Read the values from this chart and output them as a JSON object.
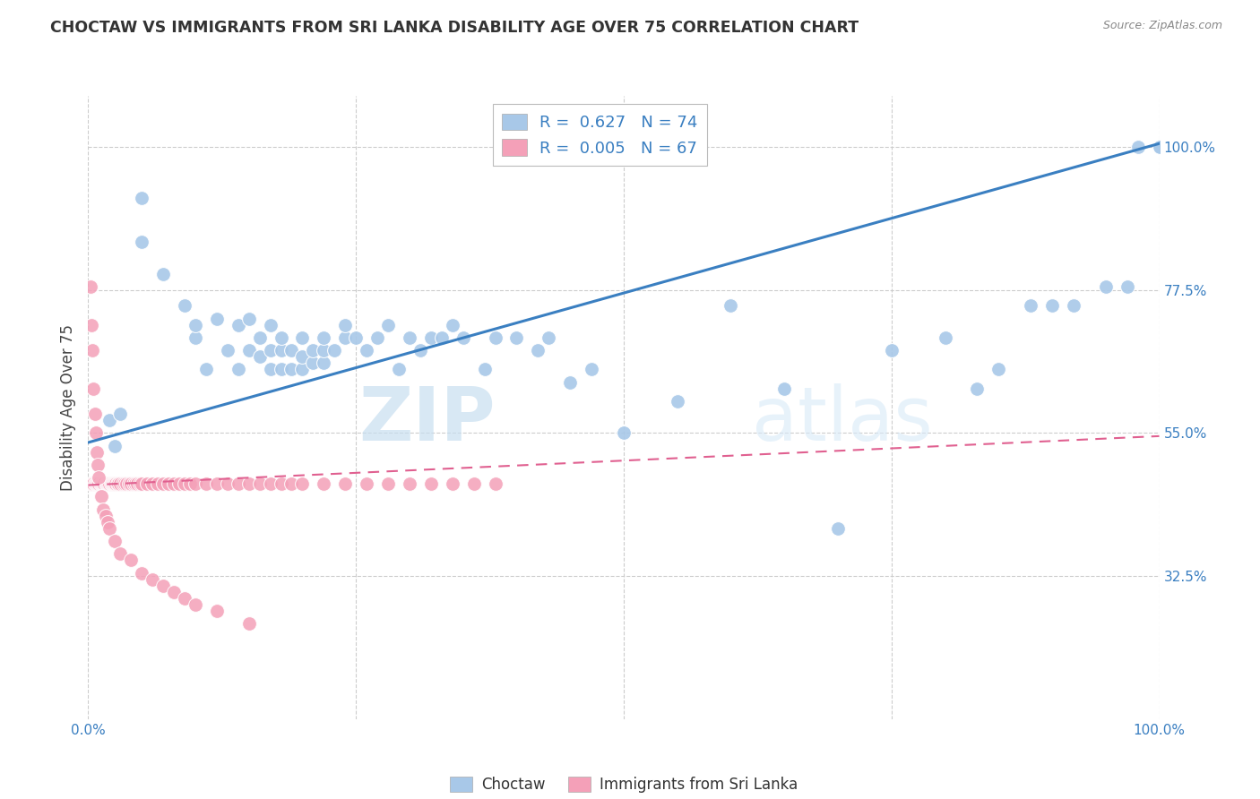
{
  "title": "CHOCTAW VS IMMIGRANTS FROM SRI LANKA DISABILITY AGE OVER 75 CORRELATION CHART",
  "source": "Source: ZipAtlas.com",
  "ylabel": "Disability Age Over 75",
  "ytick_labels": [
    "100.0%",
    "77.5%",
    "55.0%",
    "32.5%"
  ],
  "ytick_values": [
    1.0,
    0.775,
    0.55,
    0.325
  ],
  "xlim": [
    0.0,
    1.0
  ],
  "ylim": [
    0.1,
    1.08
  ],
  "legend_label1": "Choctaw",
  "legend_label2": "Immigrants from Sri Lanka",
  "R1": 0.627,
  "N1": 74,
  "R2": 0.005,
  "N2": 67,
  "color_blue": "#a8c8e8",
  "color_pink": "#f4a0b8",
  "color_line_blue": "#3a7fc1",
  "color_line_pink": "#e06090",
  "watermark_zip": "ZIP",
  "watermark_atlas": "atlas",
  "blue_scatter_x": [
    0.02,
    0.025,
    0.03,
    0.05,
    0.05,
    0.07,
    0.09,
    0.1,
    0.1,
    0.11,
    0.12,
    0.13,
    0.14,
    0.14,
    0.15,
    0.15,
    0.16,
    0.16,
    0.17,
    0.17,
    0.17,
    0.18,
    0.18,
    0.18,
    0.19,
    0.19,
    0.2,
    0.2,
    0.2,
    0.21,
    0.21,
    0.22,
    0.22,
    0.22,
    0.23,
    0.24,
    0.24,
    0.25,
    0.26,
    0.27,
    0.28,
    0.29,
    0.3,
    0.31,
    0.32,
    0.33,
    0.34,
    0.35,
    0.37,
    0.38,
    0.4,
    0.42,
    0.43,
    0.45,
    0.47,
    0.5,
    0.55,
    0.6,
    0.65,
    0.7,
    0.75,
    0.8,
    0.83,
    0.85,
    0.88,
    0.9,
    0.92,
    0.95,
    0.97,
    0.98,
    1.0,
    1.0,
    1.0,
    1.0
  ],
  "blue_scatter_y": [
    0.57,
    0.53,
    0.58,
    0.85,
    0.92,
    0.8,
    0.75,
    0.7,
    0.72,
    0.65,
    0.73,
    0.68,
    0.65,
    0.72,
    0.68,
    0.73,
    0.67,
    0.7,
    0.65,
    0.68,
    0.72,
    0.65,
    0.68,
    0.7,
    0.65,
    0.68,
    0.65,
    0.67,
    0.7,
    0.66,
    0.68,
    0.66,
    0.68,
    0.7,
    0.68,
    0.7,
    0.72,
    0.7,
    0.68,
    0.7,
    0.72,
    0.65,
    0.7,
    0.68,
    0.7,
    0.7,
    0.72,
    0.7,
    0.65,
    0.7,
    0.7,
    0.68,
    0.7,
    0.63,
    0.65,
    0.55,
    0.6,
    0.75,
    0.62,
    0.4,
    0.68,
    0.7,
    0.62,
    0.65,
    0.75,
    0.75,
    0.75,
    0.78,
    0.78,
    1.0,
    1.0,
    1.0,
    1.0,
    1.0
  ],
  "pink_scatter_x": [
    0.002,
    0.003,
    0.004,
    0.005,
    0.006,
    0.007,
    0.008,
    0.009,
    0.01,
    0.011,
    0.012,
    0.013,
    0.014,
    0.015,
    0.016,
    0.017,
    0.018,
    0.019,
    0.02,
    0.021,
    0.022,
    0.023,
    0.024,
    0.025,
    0.026,
    0.027,
    0.028,
    0.03,
    0.032,
    0.034,
    0.036,
    0.038,
    0.04,
    0.042,
    0.044,
    0.046,
    0.048,
    0.05,
    0.055,
    0.06,
    0.065,
    0.07,
    0.075,
    0.08,
    0.085,
    0.09,
    0.095,
    0.1,
    0.11,
    0.12,
    0.13,
    0.14,
    0.15,
    0.16,
    0.17,
    0.18,
    0.19,
    0.2,
    0.22,
    0.24,
    0.26,
    0.28,
    0.3,
    0.32,
    0.34,
    0.36,
    0.38
  ],
  "pink_scatter_y": [
    0.47,
    0.47,
    0.47,
    0.47,
    0.47,
    0.47,
    0.47,
    0.47,
    0.47,
    0.47,
    0.47,
    0.47,
    0.47,
    0.47,
    0.47,
    0.47,
    0.47,
    0.47,
    0.47,
    0.47,
    0.47,
    0.47,
    0.47,
    0.47,
    0.47,
    0.47,
    0.47,
    0.47,
    0.47,
    0.47,
    0.47,
    0.47,
    0.47,
    0.47,
    0.47,
    0.47,
    0.47,
    0.47,
    0.47,
    0.47,
    0.47,
    0.47,
    0.47,
    0.47,
    0.47,
    0.47,
    0.47,
    0.47,
    0.47,
    0.47,
    0.47,
    0.47,
    0.47,
    0.47,
    0.47,
    0.47,
    0.47,
    0.47,
    0.47,
    0.47,
    0.47,
    0.47,
    0.47,
    0.47,
    0.47,
    0.47,
    0.47
  ],
  "pink_extra_x": [
    0.002,
    0.003,
    0.004,
    0.005,
    0.006,
    0.007,
    0.008,
    0.009,
    0.01,
    0.012,
    0.014,
    0.016,
    0.018,
    0.02,
    0.025,
    0.03,
    0.04,
    0.05,
    0.06,
    0.07,
    0.08,
    0.09,
    0.1,
    0.12,
    0.15
  ],
  "pink_extra_y": [
    0.78,
    0.72,
    0.68,
    0.62,
    0.58,
    0.55,
    0.52,
    0.5,
    0.48,
    0.45,
    0.43,
    0.42,
    0.41,
    0.4,
    0.38,
    0.36,
    0.35,
    0.33,
    0.32,
    0.31,
    0.3,
    0.29,
    0.28,
    0.27,
    0.25
  ],
  "blue_line_x": [
    0.0,
    1.0
  ],
  "blue_line_y": [
    0.535,
    1.005
  ],
  "pink_line_x": [
    0.0,
    1.0
  ],
  "pink_line_y": [
    0.468,
    0.545
  ]
}
